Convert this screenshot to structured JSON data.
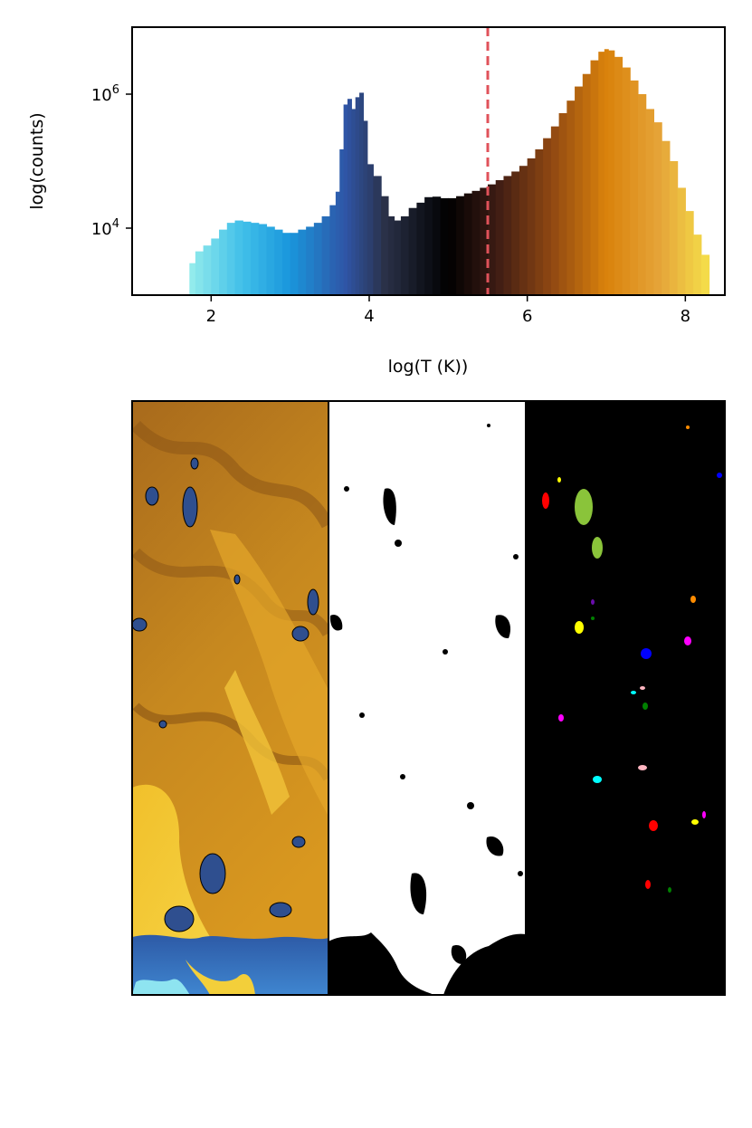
{
  "chart_data": [
    {
      "type": "bar",
      "xlabel": "log(T (K))",
      "ylabel": "log(counts)",
      "xlim": [
        1.0,
        8.5
      ],
      "ylim": [
        1000,
        10000000
      ],
      "yscale": "log",
      "grid": false,
      "x_ticks": [
        2,
        4,
        6,
        8
      ],
      "y_ticks": [
        {
          "value": 10000,
          "base": "10",
          "exp": "4"
        },
        {
          "value": 1000000,
          "base": "10",
          "exp": "6"
        }
      ],
      "bins": [
        [
          1.7,
          1000
        ],
        [
          1.75,
          3000
        ],
        [
          1.85,
          4500
        ],
        [
          1.95,
          5500
        ],
        [
          2.05,
          7000
        ],
        [
          2.15,
          9500
        ],
        [
          2.25,
          12000
        ],
        [
          2.35,
          13000
        ],
        [
          2.45,
          12500
        ],
        [
          2.55,
          12000
        ],
        [
          2.65,
          11500
        ],
        [
          2.75,
          10500
        ],
        [
          2.85,
          9500
        ],
        [
          2.95,
          8500
        ],
        [
          3.05,
          8500
        ],
        [
          3.15,
          9500
        ],
        [
          3.25,
          10500
        ],
        [
          3.35,
          12000
        ],
        [
          3.45,
          15000
        ],
        [
          3.55,
          22000
        ],
        [
          3.6,
          35000
        ],
        [
          3.65,
          150000
        ],
        [
          3.7,
          700000
        ],
        [
          3.75,
          850000
        ],
        [
          3.8,
          600000
        ],
        [
          3.85,
          900000
        ],
        [
          3.9,
          1050000
        ],
        [
          3.95,
          400000
        ],
        [
          4.0,
          90000
        ],
        [
          4.1,
          60000
        ],
        [
          4.2,
          30000
        ],
        [
          4.28,
          15000
        ],
        [
          4.35,
          13000
        ],
        [
          4.45,
          15000
        ],
        [
          4.55,
          20000
        ],
        [
          4.65,
          24000
        ],
        [
          4.75,
          29000
        ],
        [
          4.85,
          29500
        ],
        [
          4.95,
          28000
        ],
        [
          5.05,
          28000
        ],
        [
          5.15,
          30000
        ],
        [
          5.25,
          33000
        ],
        [
          5.35,
          36000
        ],
        [
          5.45,
          40000
        ],
        [
          5.55,
          45000
        ],
        [
          5.65,
          52000
        ],
        [
          5.75,
          60000
        ],
        [
          5.85,
          70000
        ],
        [
          5.95,
          85000
        ],
        [
          6.05,
          110000
        ],
        [
          6.15,
          150000
        ],
        [
          6.25,
          220000
        ],
        [
          6.35,
          330000
        ],
        [
          6.45,
          520000
        ],
        [
          6.55,
          800000
        ],
        [
          6.65,
          1300000
        ],
        [
          6.75,
          2000000
        ],
        [
          6.85,
          3200000
        ],
        [
          6.95,
          4300000
        ],
        [
          7.0,
          4700000
        ],
        [
          7.05,
          4500000
        ],
        [
          7.15,
          3600000
        ],
        [
          7.25,
          2500000
        ],
        [
          7.35,
          1600000
        ],
        [
          7.45,
          1000000
        ],
        [
          7.55,
          600000
        ],
        [
          7.65,
          380000
        ],
        [
          7.75,
          200000
        ],
        [
          7.85,
          100000
        ],
        [
          7.95,
          40000
        ],
        [
          8.05,
          18000
        ],
        [
          8.15,
          8000
        ],
        [
          8.25,
          4000
        ]
      ],
      "color_scale": [
        [
          1.7,
          "#98eeec"
        ],
        [
          2.4,
          "#40bfe9"
        ],
        [
          3.0,
          "#1996dc"
        ],
        [
          3.7,
          "#2f55a6"
        ],
        [
          4.2,
          "#2a3148"
        ],
        [
          5.0,
          "#000000"
        ],
        [
          5.6,
          "#3c1b14"
        ],
        [
          6.3,
          "#8f4712"
        ],
        [
          7.0,
          "#d9820c"
        ],
        [
          7.7,
          "#e6a63a"
        ],
        [
          8.3,
          "#f5e04a"
        ]
      ],
      "vline": {
        "x": 5.5,
        "color": "#e0525a",
        "style": "dashed"
      }
    },
    {
      "type": "image",
      "panels": [
        "temperature-slice",
        "cold-gas-mask",
        "labeled-clouds"
      ]
    }
  ]
}
